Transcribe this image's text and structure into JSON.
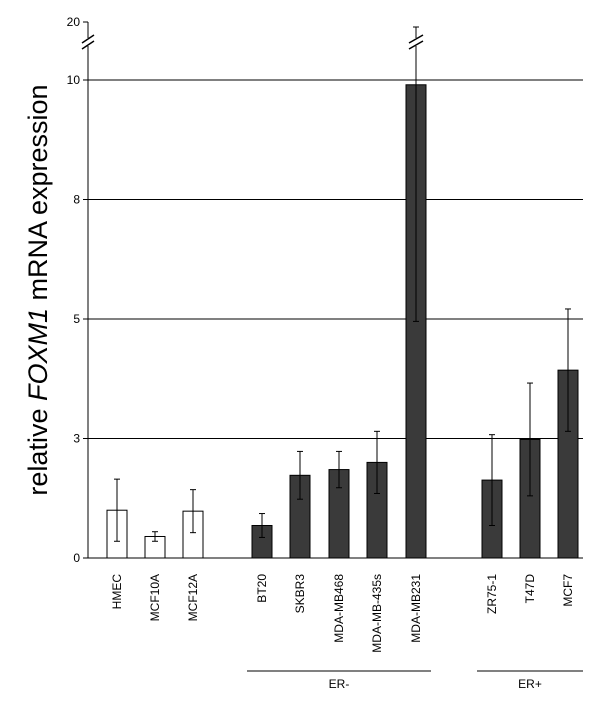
{
  "chart_data": {
    "type": "bar",
    "title": "",
    "xlabel": "",
    "ylabel_parts": [
      {
        "text": "relative ",
        "italic": false
      },
      {
        "text": "FOXM1",
        "italic": true
      },
      {
        "text": " mRNA expression",
        "italic": false
      }
    ],
    "ylim": [
      0,
      10
    ],
    "axis_break": true,
    "break_top_tick": "20",
    "y_ticks": [
      {
        "value": 0,
        "label": "0"
      },
      {
        "value": 2.5,
        "label": "3"
      },
      {
        "value": 5,
        "label": "5"
      },
      {
        "value": 7.5,
        "label": "8"
      },
      {
        "value": 10,
        "label": "10"
      }
    ],
    "grid": true,
    "categories": [
      "HMEC",
      "MCF10A",
      "MCF12A",
      "BT20",
      "SKBR3",
      "MDA-MB468",
      "MDA-MB-435s",
      "MDA-MB231",
      "ZR75-1",
      "T47D",
      "MCF7"
    ],
    "values": [
      1.0,
      0.45,
      0.98,
      0.68,
      1.73,
      1.85,
      2.0,
      9.9,
      1.63,
      2.48,
      3.93
    ],
    "errors": [
      0.65,
      0.1,
      0.45,
      0.25,
      0.5,
      0.38,
      0.65,
      4.95,
      0.95,
      1.18,
      1.28
    ],
    "break_errors": [
      false,
      false,
      false,
      false,
      false,
      false,
      false,
      true,
      false,
      false,
      false
    ],
    "fills": [
      "#ffffff",
      "#ffffff",
      "#ffffff",
      "#3a3a3a",
      "#3a3a3a",
      "#3a3a3a",
      "#3a3a3a",
      "#3a3a3a",
      "#3a3a3a",
      "#3a3a3a",
      "#3a3a3a"
    ],
    "groups": [
      {
        "label": "ER-",
        "from": 3,
        "to": 7
      },
      {
        "label": "ER+",
        "from": 8,
        "to": 10
      }
    ]
  }
}
